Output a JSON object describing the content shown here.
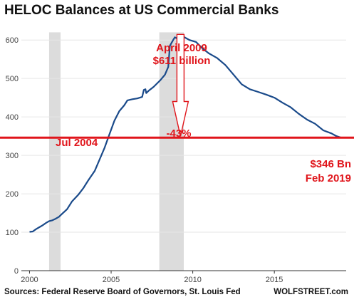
{
  "title": "HELOC Balances at US Commercial Banks",
  "source": "Sources: Federal Reserve Board of Governors, St. Louis Fed",
  "brand": "WOLFSTREET.com",
  "colors": {
    "line": "#1a4a8a",
    "recession": "#dcdcdc",
    "annotation": "#e0151b",
    "grid": "#e6e6e6"
  },
  "chart_data": {
    "type": "line",
    "title": "HELOC Balances at US Commercial Banks",
    "xlim": [
      1999.5,
      2019.4
    ],
    "ylim": [
      0,
      630
    ],
    "yticks": [
      0,
      100,
      200,
      300,
      400,
      500,
      600
    ],
    "xticks": [
      2000,
      2005,
      2010,
      2015
    ],
    "grid": "horizontal",
    "recessions": [
      [
        2001.2,
        2001.9
      ],
      [
        2007.95,
        2009.45
      ]
    ],
    "series": [
      {
        "x": [
          2000.0,
          2000.2,
          2000.4,
          2000.6,
          2000.8,
          2001.0,
          2001.2,
          2001.4,
          2001.6,
          2001.8,
          2002.0,
          2002.3,
          2002.6,
          2003.0,
          2003.3,
          2003.6,
          2004.0,
          2004.3,
          2004.6,
          2004.9,
          2005.2,
          2005.5,
          2005.8,
          2006.0,
          2006.3,
          2006.6,
          2006.9,
          2007.0,
          2007.1,
          2007.15,
          2007.3,
          2007.6,
          2008.0,
          2008.3,
          2008.5,
          2008.6,
          2008.8,
          2008.9,
          2009.0,
          2009.25,
          2009.5,
          2009.8,
          2010.2,
          2010.6,
          2011.0,
          2011.5,
          2012.0,
          2012.5,
          2013.0,
          2013.5,
          2014.0,
          2014.5,
          2015.0,
          2015.5,
          2016.0,
          2016.5,
          2017.0,
          2017.5,
          2018.0,
          2018.5,
          2018.8,
          2019.1
        ],
        "values": [
          101,
          102,
          108,
          113,
          118,
          124,
          129,
          131,
          135,
          140,
          148,
          160,
          180,
          198,
          215,
          235,
          260,
          290,
          320,
          355,
          390,
          415,
          430,
          443,
          446,
          448,
          452,
          470,
          472,
          462,
          468,
          478,
          495,
          510,
          530,
          585,
          600,
          607,
          605,
          611,
          607,
          600,
          595,
          578,
          565,
          553,
          535,
          510,
          485,
          472,
          465,
          458,
          450,
          437,
          425,
          408,
          393,
          382,
          365,
          357,
          350,
          346
        ]
      }
    ],
    "reference_line": 346,
    "annotations": {
      "peak_date": "April 2009",
      "peak_value": "$611 billion",
      "drop": "-43%",
      "cross_date": "Jul 2004",
      "end_value": "$346 Bn",
      "end_date": "Feb 2019"
    }
  }
}
